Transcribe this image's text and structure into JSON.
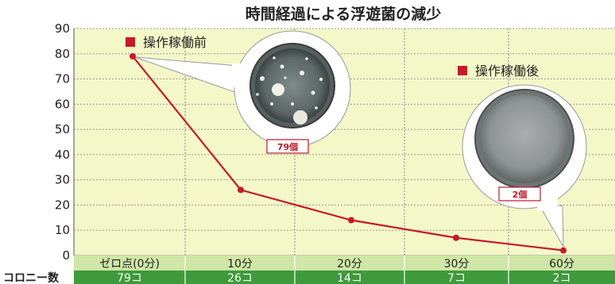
{
  "chart_data": {
    "type": "line",
    "title": "時間経過による浮遊菌の減少",
    "categories": [
      "ゼロ点(0分)",
      "10分",
      "20分",
      "30分",
      "60分"
    ],
    "values": [
      79,
      26,
      14,
      7,
      2
    ],
    "ylim": [
      0,
      90
    ],
    "yticks": [
      "0",
      "10",
      "20",
      "30",
      "40",
      "50",
      "60",
      "70",
      "80",
      "90"
    ],
    "grid": true,
    "table": {
      "row_label": "コロニー数",
      "cells": [
        "79コ",
        "26コ",
        "14コ",
        "7コ",
        "2コ"
      ]
    },
    "annotations": {
      "before": {
        "label": "操作稼働前",
        "badge": "79個"
      },
      "after": {
        "label": "操作稼働後",
        "badge": "2個"
      }
    },
    "colors": {
      "line": "#c41a2a",
      "plot_bg": "#f4f7c8",
      "category_row": "#cfe6a6",
      "count_row": "#3e9a3a",
      "marker": "#c41a2a"
    }
  }
}
